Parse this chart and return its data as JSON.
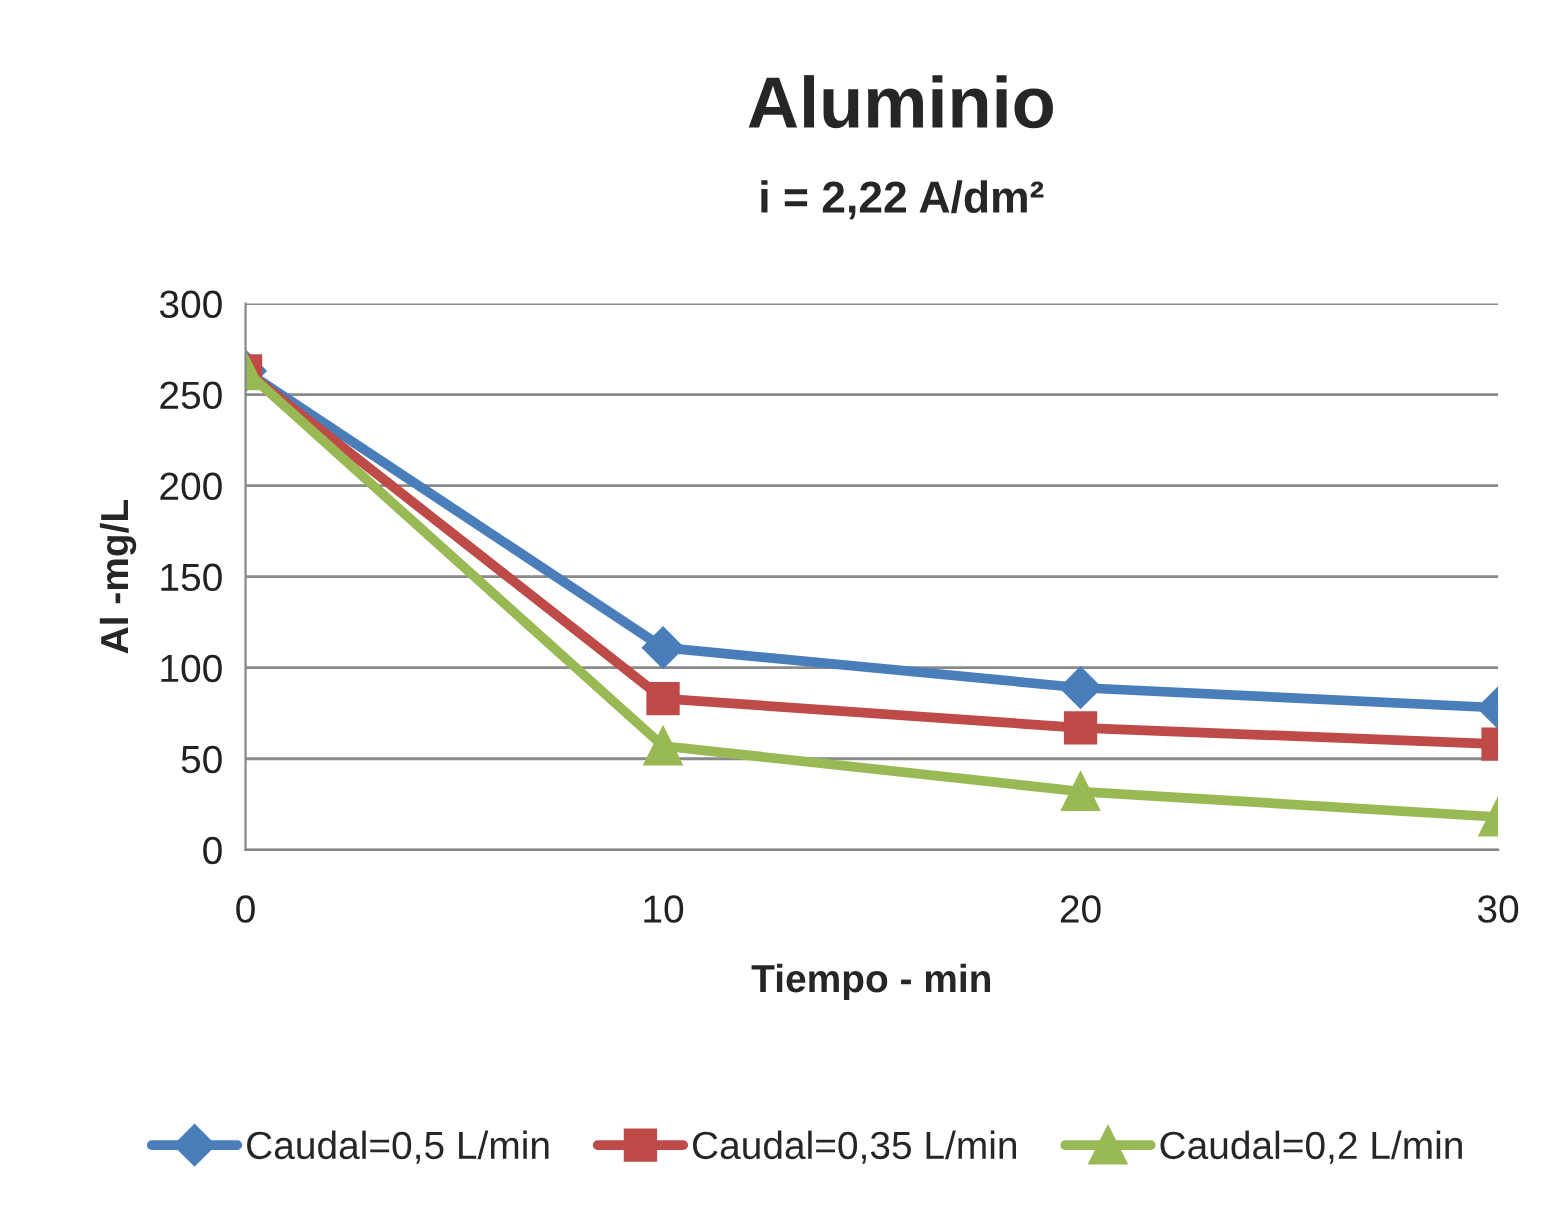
{
  "chart_data": {
    "type": "line",
    "title": "Aluminio",
    "subtitle": "i = 2,22 A/dm²",
    "xlabel": "Tiempo - min",
    "ylabel": "Al -mg/L",
    "x": [
      0,
      10,
      20,
      30
    ],
    "series": [
      {
        "name": "Caudal=0,5 L/min",
        "color": "#4a7ebb",
        "marker": "diamond",
        "values": [
          263,
          111,
          89,
          78
        ]
      },
      {
        "name": "Caudal=0,35 L/min",
        "color": "#be4b48",
        "marker": "square",
        "values": [
          263,
          83,
          67,
          58
        ]
      },
      {
        "name": "Caudal=0,2 L/min",
        "color": "#98b954",
        "marker": "triangle",
        "values": [
          263,
          57,
          32,
          18
        ]
      }
    ],
    "xlim": [
      0,
      30
    ],
    "xticks": [
      0,
      10,
      20,
      30
    ],
    "ylim": [
      0,
      300
    ],
    "yticks": [
      0,
      50,
      100,
      150,
      200,
      250,
      300
    ],
    "grid": "y",
    "legend": "bottom",
    "line_style": "solid"
  }
}
